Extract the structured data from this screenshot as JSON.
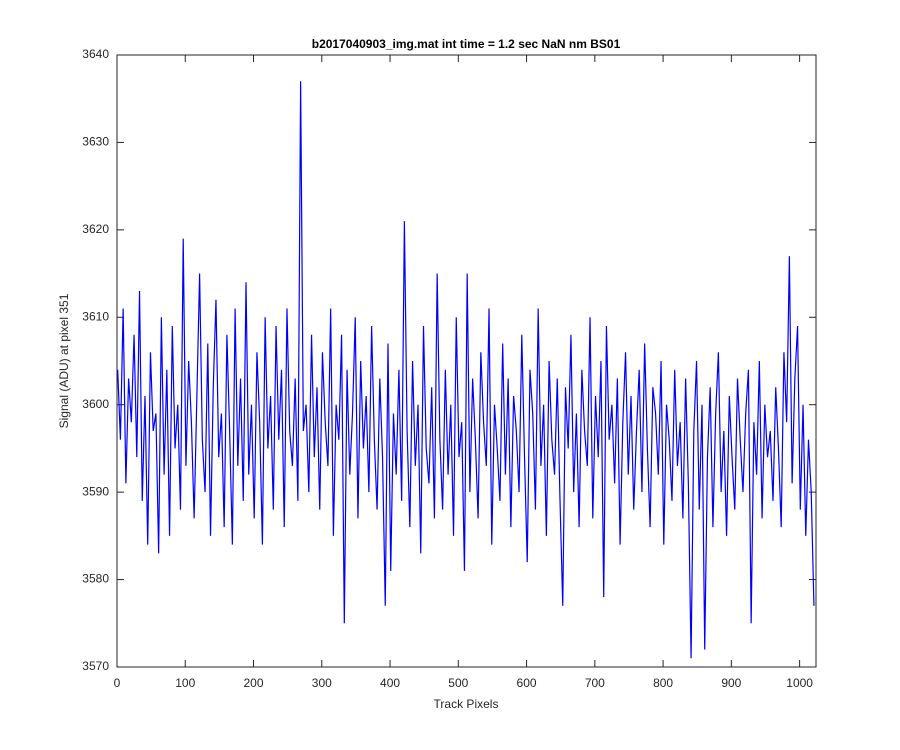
{
  "chart_data": {
    "type": "line",
    "title": "b2017040903_img.mat int time = 1.2 sec  NaN nm BS01",
    "xlabel": "Track Pixels",
    "ylabel": "Signal (ADU) at pixel 351",
    "xlim": [
      0,
      1024
    ],
    "ylim": [
      3570,
      3640
    ],
    "xticks": [
      0,
      100,
      200,
      300,
      400,
      500,
      600,
      700,
      800,
      900,
      1000
    ],
    "yticks": [
      3570,
      3580,
      3590,
      3600,
      3610,
      3620,
      3630,
      3640
    ],
    "x": [
      1,
      5,
      9,
      13,
      17,
      21,
      25,
      29,
      33,
      37,
      41,
      45,
      49,
      53,
      57,
      61,
      65,
      69,
      73,
      77,
      81,
      85,
      89,
      93,
      97,
      101,
      105,
      109,
      113,
      117,
      121,
      125,
      129,
      133,
      137,
      141,
      145,
      149,
      153,
      157,
      161,
      165,
      169,
      173,
      177,
      181,
      185,
      189,
      193,
      197,
      201,
      205,
      209,
      213,
      217,
      221,
      225,
      229,
      233,
      237,
      241,
      245,
      249,
      253,
      257,
      261,
      265,
      269,
      273,
      277,
      281,
      285,
      289,
      293,
      297,
      301,
      305,
      309,
      313,
      317,
      321,
      325,
      329,
      333,
      337,
      341,
      345,
      349,
      353,
      357,
      361,
      365,
      369,
      373,
      377,
      381,
      385,
      389,
      393,
      397,
      401,
      405,
      409,
      413,
      417,
      421,
      425,
      429,
      433,
      437,
      441,
      445,
      449,
      453,
      457,
      461,
      465,
      469,
      473,
      477,
      481,
      485,
      489,
      493,
      497,
      501,
      505,
      509,
      513,
      517,
      521,
      525,
      529,
      533,
      537,
      541,
      545,
      549,
      553,
      557,
      561,
      565,
      569,
      573,
      577,
      581,
      585,
      589,
      593,
      597,
      601,
      605,
      609,
      613,
      617,
      621,
      625,
      629,
      633,
      637,
      641,
      645,
      649,
      653,
      657,
      661,
      665,
      669,
      673,
      677,
      681,
      685,
      689,
      693,
      697,
      701,
      705,
      709,
      713,
      717,
      721,
      725,
      729,
      733,
      737,
      741,
      745,
      749,
      753,
      757,
      761,
      765,
      769,
      773,
      777,
      781,
      785,
      789,
      793,
      797,
      801,
      805,
      809,
      813,
      817,
      821,
      825,
      829,
      833,
      837,
      841,
      845,
      849,
      853,
      857,
      861,
      865,
      869,
      873,
      877,
      881,
      885,
      889,
      893,
      897,
      901,
      905,
      909,
      913,
      917,
      921,
      925,
      929,
      933,
      937,
      941,
      945,
      949,
      953,
      957,
      961,
      965,
      969,
      973,
      977,
      981,
      985,
      989,
      993,
      997,
      1001,
      1005,
      1009,
      1013,
      1017,
      1021
    ],
    "series": [
      {
        "name": "signal",
        "color": "#0000ff",
        "values": [
          3604,
          3596,
          3611,
          3591,
          3603,
          3598,
          3608,
          3594,
          3613,
          3589,
          3601,
          3584,
          3606,
          3597,
          3599,
          3583,
          3610,
          3592,
          3604,
          3585,
          3609,
          3595,
          3600,
          3588,
          3619,
          3593,
          3605,
          3598,
          3587,
          3601,
          3615,
          3596,
          3590,
          3607,
          3585,
          3602,
          3612,
          3594,
          3599,
          3586,
          3608,
          3597,
          3584,
          3611,
          3593,
          3603,
          3589,
          3614,
          3592,
          3600,
          3587,
          3606,
          3598,
          3584,
          3610,
          3595,
          3601,
          3588,
          3609,
          3596,
          3604,
          3586,
          3611,
          3597,
          3593,
          3603,
          3589,
          3637,
          3597,
          3600,
          3590,
          3608,
          3594,
          3602,
          3588,
          3606,
          3598,
          3593,
          3611,
          3585,
          3600,
          3596,
          3608,
          3575,
          3604,
          3592,
          3599,
          3610,
          3587,
          3605,
          3595,
          3601,
          3590,
          3609,
          3596,
          3588,
          3603,
          3594,
          3577,
          3607,
          3581,
          3599,
          3592,
          3604,
          3589,
          3621,
          3597,
          3586,
          3605,
          3593,
          3600,
          3583,
          3609,
          3595,
          3591,
          3602,
          3587,
          3615,
          3596,
          3588,
          3604,
          3592,
          3600,
          3585,
          3610,
          3594,
          3598,
          3581,
          3615,
          3590,
          3603,
          3596,
          3587,
          3606,
          3598,
          3593,
          3611,
          3584,
          3600,
          3595,
          3589,
          3607,
          3592,
          3603,
          3586,
          3601,
          3597,
          3590,
          3608,
          3594,
          3582,
          3604,
          3599,
          3588,
          3611,
          3593,
          3600,
          3585,
          3605,
          3596,
          3592,
          3603,
          3589,
          3577,
          3602,
          3595,
          3608,
          3590,
          3599,
          3586,
          3604,
          3597,
          3593,
          3610,
          3587,
          3601,
          3594,
          3605,
          3578,
          3609,
          3596,
          3600,
          3591,
          3603,
          3584,
          3598,
          3606,
          3592,
          3601,
          3588,
          3597,
          3604,
          3590,
          3607,
          3595,
          3586,
          3602,
          3599,
          3592,
          3605,
          3584,
          3600,
          3596,
          3589,
          3604,
          3593,
          3598,
          3587,
          3603,
          3591,
          3571,
          3597,
          3605,
          3588,
          3600,
          3572,
          3594,
          3602,
          3586,
          3599,
          3606,
          3590,
          3597,
          3585,
          3601,
          3594,
          3588,
          3603,
          3596,
          3590,
          3599,
          3604,
          3575,
          3598,
          3592,
          3605,
          3587,
          3600,
          3594,
          3597,
          3589,
          3602,
          3595,
          3586,
          3606,
          3598,
          3617,
          3591,
          3603,
          3609,
          3588,
          3600,
          3585,
          3596,
          3590,
          3577
        ]
      }
    ]
  }
}
